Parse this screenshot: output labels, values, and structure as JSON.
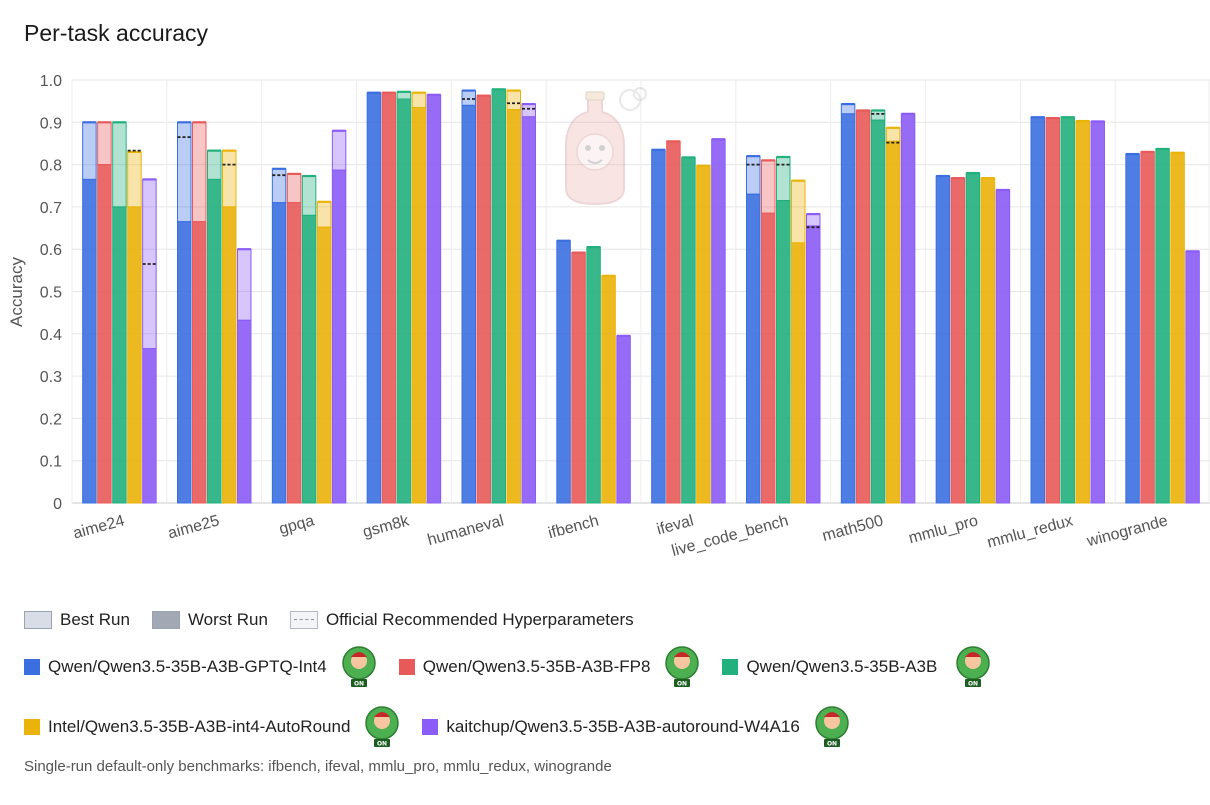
{
  "chart_data": {
    "type": "bar",
    "title": "Per-task accuracy",
    "ylabel": "Accuracy",
    "ylim": [
      0,
      1.0
    ],
    "yticks": [
      "0",
      "0.1",
      "0.2",
      "0.3",
      "0.4",
      "0.5",
      "0.6",
      "0.7",
      "0.8",
      "0.9",
      "1.0"
    ],
    "categories": [
      "aime24",
      "aime25",
      "gpqa",
      "gsm8k",
      "humaneval",
      "ifbench",
      "ifeval",
      "live_code_bench",
      "math500",
      "mmlu_pro",
      "mmlu_redux",
      "winogrande"
    ],
    "series": [
      {
        "name": "Qwen/Qwen3.5-35B-A3B-GPTQ-Int4",
        "color": "#3b6fe0",
        "best": [
          0.9,
          0.9,
          0.79,
          0.97,
          0.975,
          0.62,
          0.835,
          0.82,
          0.943,
          0.773,
          0.912,
          0.825
        ],
        "worst": [
          0.765,
          0.665,
          0.71,
          0.97,
          0.94,
          0.62,
          0.835,
          0.73,
          0.92,
          0.773,
          0.912,
          0.825
        ],
        "official": [
          null,
          0.865,
          0.775,
          null,
          0.955,
          null,
          null,
          0.8,
          null,
          null,
          null,
          null
        ]
      },
      {
        "name": "Qwen/Qwen3.5-35B-A3B-FP8",
        "color": "#e85a5a",
        "best": [
          0.9,
          0.9,
          0.778,
          0.97,
          0.963,
          0.592,
          0.855,
          0.81,
          0.928,
          0.768,
          0.91,
          0.83
        ],
        "worst": [
          0.8,
          0.665,
          0.71,
          0.97,
          0.963,
          0.592,
          0.855,
          0.685,
          0.928,
          0.768,
          0.91,
          0.83
        ],
        "official": [
          null,
          null,
          null,
          null,
          null,
          null,
          null,
          null,
          null,
          null,
          null,
          null
        ]
      },
      {
        "name": "Qwen/Qwen3.5-35B-A3B",
        "color": "#22b07d",
        "best": [
          0.9,
          0.833,
          0.773,
          0.972,
          0.978,
          0.605,
          0.817,
          0.818,
          0.928,
          0.78,
          0.912,
          0.837
        ],
        "worst": [
          0.7,
          0.765,
          0.68,
          0.955,
          0.978,
          0.605,
          0.817,
          0.715,
          0.905,
          0.78,
          0.912,
          0.837
        ],
        "official": [
          null,
          null,
          null,
          null,
          null,
          null,
          null,
          0.8,
          0.92,
          null,
          null,
          null
        ]
      },
      {
        "name": "Intel/Qwen3.5-35B-A3B-int4-AutoRound",
        "color": "#eab308",
        "best": [
          0.83,
          0.833,
          0.712,
          0.97,
          0.975,
          0.537,
          0.797,
          0.762,
          0.887,
          0.768,
          0.903,
          0.828
        ],
        "worst": [
          0.7,
          0.7,
          0.652,
          0.935,
          0.93,
          0.537,
          0.797,
          0.615,
          0.855,
          0.768,
          0.903,
          0.828
        ],
        "official": [
          0.833,
          0.8,
          null,
          null,
          0.945,
          null,
          null,
          null,
          0.852,
          null,
          null,
          null
        ]
      },
      {
        "name": "kaitchup/Qwen3.5-35B-A3B-autoround-W4A16",
        "color": "#8b5cf6",
        "best": [
          0.765,
          0.6,
          0.88,
          0.965,
          0.943,
          0.395,
          0.86,
          0.683,
          0.92,
          0.74,
          0.902,
          0.595
        ],
        "worst": [
          0.365,
          0.432,
          0.787,
          0.965,
          0.913,
          0.395,
          0.86,
          0.655,
          0.92,
          0.74,
          0.902,
          0.595
        ],
        "official": [
          0.565,
          null,
          null,
          null,
          0.932,
          null,
          null,
          0.652,
          null,
          null,
          null,
          null
        ]
      }
    ]
  },
  "legend": {
    "best_run": "Best Run",
    "worst_run": "Worst Run",
    "official": "Official Recommended Hyperparameters"
  },
  "models": [
    "Qwen/Qwen3.5-35B-A3B-GPTQ-Int4",
    "Qwen/Qwen3.5-35B-A3B-FP8",
    "Qwen/Qwen3.5-35B-A3B",
    "Intel/Qwen3.5-35B-A3B-int4-AutoRound",
    "kaitchup/Qwen3.5-35B-A3B-autoround-W4A16"
  ],
  "badge_text": "ON",
  "footnote": "Single-run default-only benchmarks: ifbench, ifeval, mmlu_pro, mmlu_redux, winogrande"
}
